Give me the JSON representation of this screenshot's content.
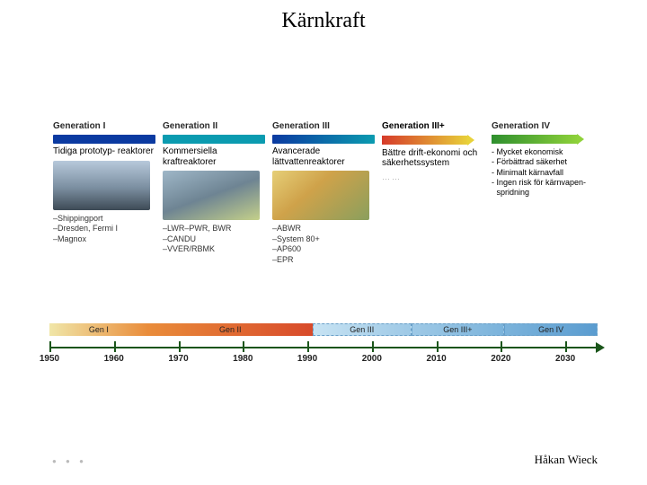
{
  "title": "Kärnkraft",
  "author": "Håkan Wieck",
  "columns": [
    {
      "gen_label": "Generation I",
      "bar_color": "#0b3aa1",
      "desc": "Tidiga prototyp-\nreaktorer",
      "photo_gradient": "linear-gradient(180deg,#b7c9db 0%,#7b8ea0 55%,#3d4a55 100%)",
      "reactor_list": [
        "Shippingport",
        "Dresden, Fermi I",
        "Magnox"
      ]
    },
    {
      "gen_label": "Generation II",
      "bar_color": "#0b9bb0",
      "desc": "Kommersiella kraftreaktorer",
      "photo_gradient": "linear-gradient(160deg,#9fb7c8 0%,#6e8493 50%,#c4d08a 100%)",
      "reactor_list": [
        "LWR–PWR, BWR",
        "CANDU",
        "VVER/RBMK"
      ]
    },
    {
      "gen_label": "Generation III",
      "bar_color_grad": "linear-gradient(90deg,#0b3aa1,#0b9bb0)",
      "desc": "Avancerade lättvattenreaktorer",
      "photo_gradient": "linear-gradient(140deg,#e6cf78 0%,#cfa24a 40%,#8a9f5d 100%)",
      "reactor_list": [
        "ABWR",
        "System 80+",
        "AP600",
        "EPR"
      ]
    },
    {
      "gen_label": "Generation III+",
      "bar_color_grad": "linear-gradient(90deg,#d63a2a,#e8d23a)",
      "arrow_tip": "#e8d23a",
      "desc_body": "Bättre drift-ekonomi och säkerhetssystem",
      "dotted": "……"
    },
    {
      "gen_label": "Generation IV",
      "bar_color_grad": "linear-gradient(90deg,#2e8f2e,#8fd23a)",
      "arrow_tip": "#8fd23a",
      "bullets": [
        "Mycket ekonomisk",
        "Förbättrad säkerhet",
        "Minimalt kärnavfall",
        "Ingen risk för kärnvapen-spridning"
      ]
    }
  ],
  "phase_bar": {
    "segments": [
      {
        "label": "Gen I",
        "width_pct": 18,
        "bg": "linear-gradient(90deg,#f0e6a8,#e98c3a)"
      },
      {
        "label": "Gen II",
        "width_pct": 30,
        "bg": "linear-gradient(90deg,#e98c3a,#d84a2a)"
      },
      {
        "label": "Gen III",
        "width_pct": 18,
        "bg": "linear-gradient(90deg,#c7e3f3,#9ec9e6)",
        "border": "1px dashed #6aa0c8"
      },
      {
        "label": "Gen III+",
        "width_pct": 17,
        "bg": "linear-gradient(90deg,#9ec9e6,#7bb3db)",
        "border": "1px dashed #6aa0c8"
      },
      {
        "label": "Gen IV",
        "width_pct": 17,
        "bg": "linear-gradient(90deg,#7bb3db,#5a9cd0)",
        "border": "1px dashed #6aa0c8"
      }
    ]
  },
  "year_axis": {
    "start": 1950,
    "end": 2035,
    "ticks": [
      1950,
      1960,
      1970,
      1980,
      1990,
      2000,
      2010,
      2020,
      2030
    ],
    "color": "#1a551a"
  }
}
